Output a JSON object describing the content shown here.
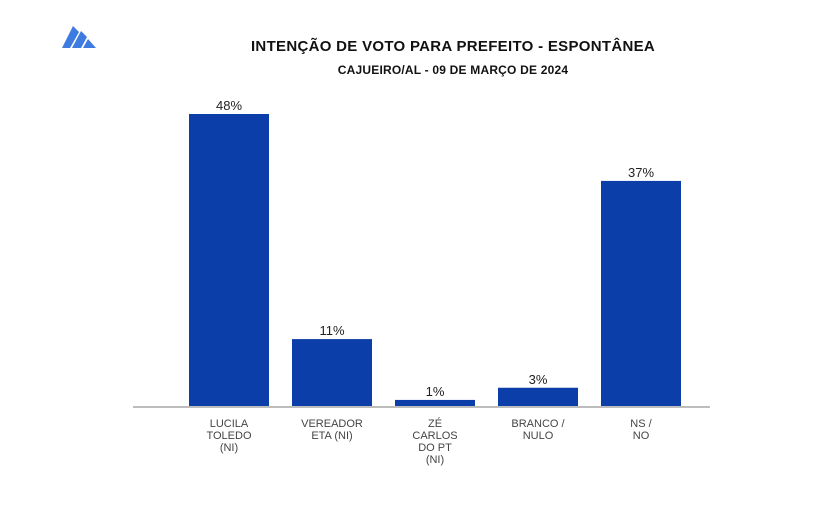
{
  "logo": {
    "name": "pollster-logo-icon",
    "color": "#3d7be0"
  },
  "chart_data": {
    "type": "bar",
    "title": "INTENÇÃO DE VOTO PARA PREFEITO - ESPONTÂNEA",
    "subtitle": "CAJUEIRO/AL - 09 DE MARÇO DE 2024",
    "categories": [
      [
        "LUCILA",
        "TOLEDO",
        "(NI)"
      ],
      [
        "VEREADOR",
        "ETA (NI)"
      ],
      [
        "ZÉ",
        "CARLOS",
        "DO PT",
        "(NI)"
      ],
      [
        "BRANCO /",
        "NULO"
      ],
      [
        "NS /",
        "NO"
      ]
    ],
    "values": [
      48,
      11,
      1,
      3,
      37
    ],
    "value_labels": [
      "48%",
      "11%",
      "1%",
      "3%",
      "37%"
    ],
    "ylim": [
      0,
      48
    ],
    "grid": false,
    "bar_color": "#0b3ea8",
    "axis_color": "#bdbdbd"
  }
}
